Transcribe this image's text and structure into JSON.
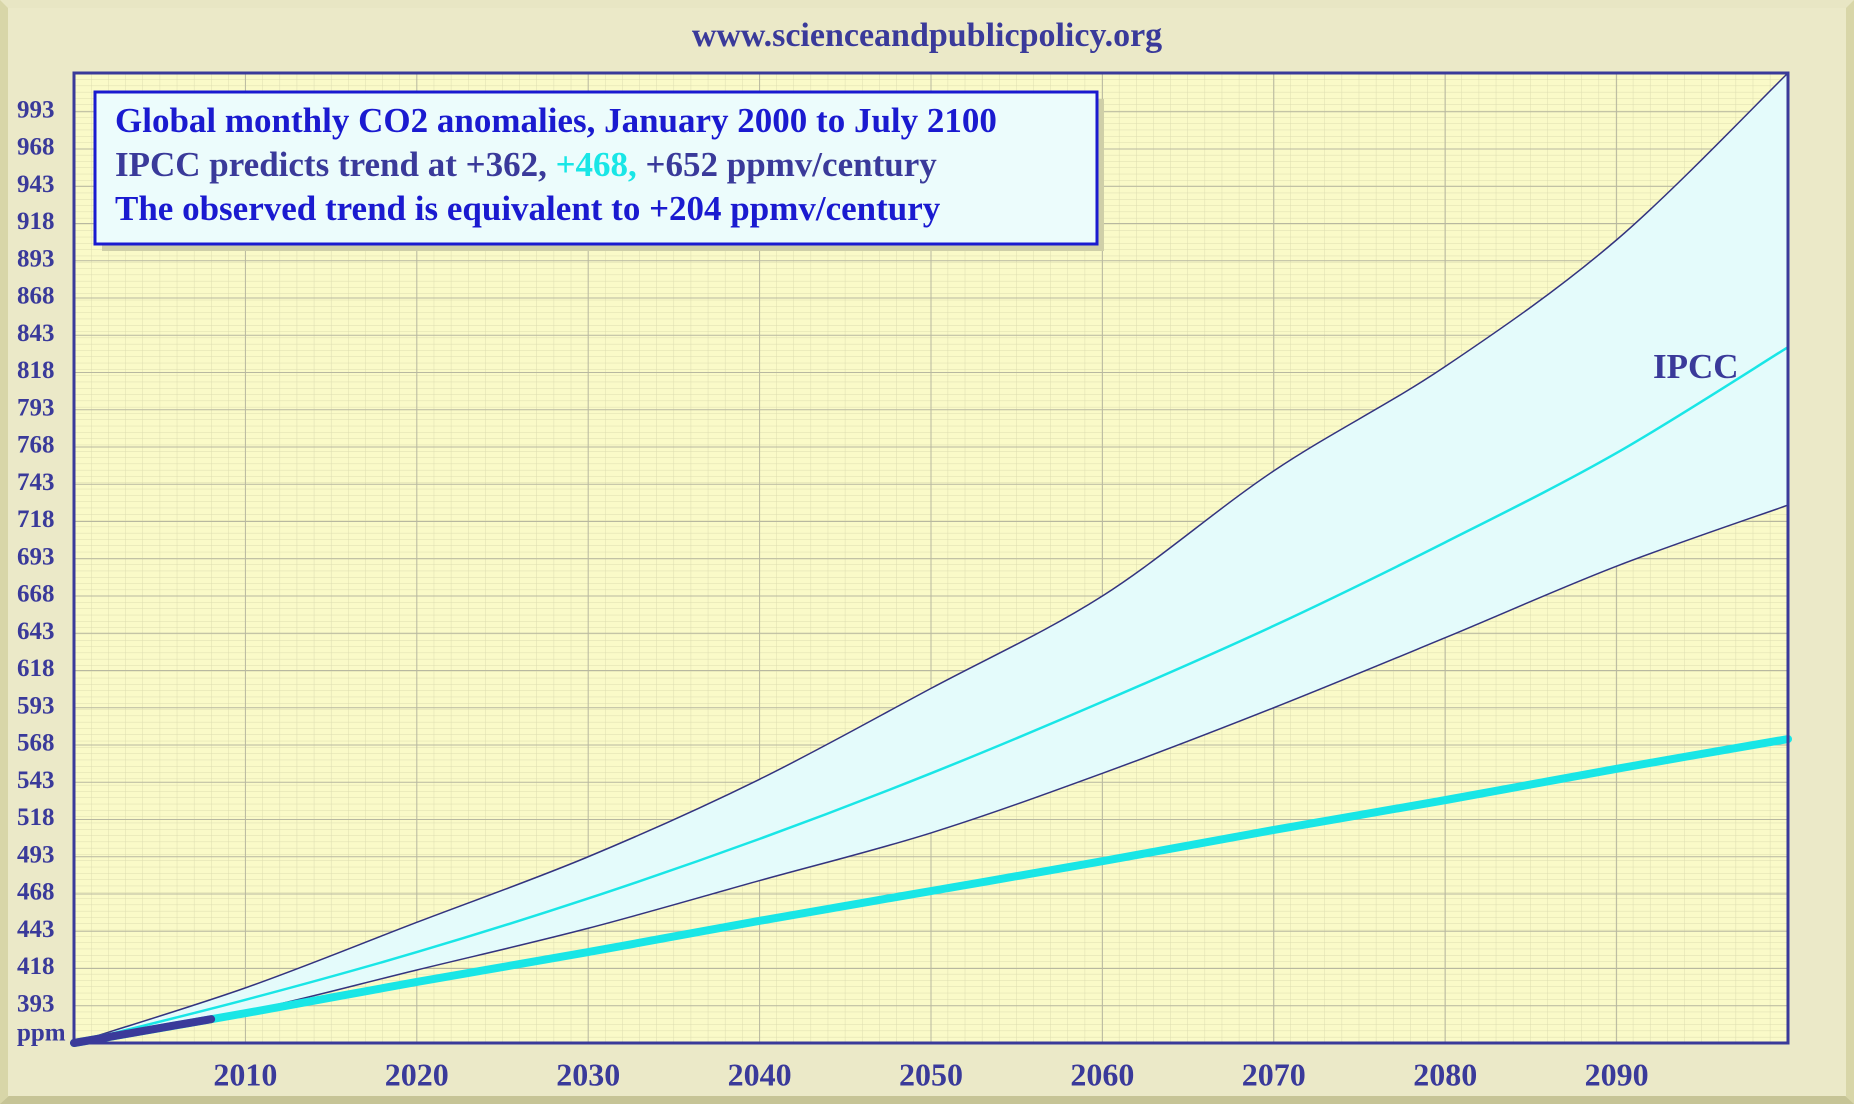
{
  "chart_data": {
    "type": "line",
    "header": "www.scienceandpublicpolicy.org",
    "annotations": [
      [
        {
          "text": "Global monthly CO2 anomalies, January 2000 to July 2100",
          "color": "#1a1ad0"
        }
      ],
      [
        {
          "text": "IPCC predicts trend at +362, ",
          "color": "#3a3a9a"
        },
        {
          "text": "+468,",
          "color": "#19e6e6"
        },
        {
          "text": " +652 ppmv/century",
          "color": "#3a3a9a"
        }
      ],
      [
        {
          "text": "The observed trend is equivalent to +204 ppmv/century",
          "color": "#1a1ad0"
        }
      ]
    ],
    "series_label": "IPCC",
    "x": [
      2000,
      2010,
      2020,
      2030,
      2040,
      2050,
      2060,
      2070,
      2080,
      2090,
      2100
    ],
    "series": [
      {
        "color": "#33337f",
        "width": 1.5,
        "values": [
          368,
          405,
          449,
          493,
          545,
          606,
          668,
          752,
          822,
          907,
          1019
        ]
      },
      {
        "color": "#19e6e6",
        "width": 2.5,
        "values": [
          368,
          397,
          429,
          465,
          505,
          549,
          597,
          648,
          704,
          764,
          835
        ]
      },
      {
        "color": "#33337f",
        "width": 1.5,
        "values": [
          368,
          389,
          417,
          445,
          477,
          509,
          549,
          593,
          640,
          688,
          729
        ]
      },
      {
        "color": "#19e6e6",
        "width": 8,
        "values": [
          368,
          388,
          409,
          429,
          450,
          470,
          490,
          511,
          531,
          552,
          572
        ]
      },
      {
        "color": "#3a3a9a",
        "width": 8,
        "x": [
          2000,
          2002,
          2004,
          2006,
          2008
        ],
        "values": [
          368,
          372,
          376,
          380,
          384
        ]
      }
    ],
    "band_color": "#e4fbfb",
    "plot_bg": "#fafac8",
    "xlim": [
      2000,
      2100
    ],
    "ylim": [
      368,
      1019
    ],
    "xticks": [
      2010,
      2020,
      2030,
      2040,
      2050,
      2060,
      2070,
      2080,
      2090
    ],
    "yticks": [
      {
        "value": 368,
        "label": "ppm"
      },
      393,
      418,
      443,
      468,
      493,
      518,
      543,
      568,
      593,
      618,
      643,
      668,
      693,
      718,
      743,
      768,
      793,
      818,
      843,
      868,
      893,
      918,
      943,
      968,
      993
    ],
    "grid": true
  }
}
